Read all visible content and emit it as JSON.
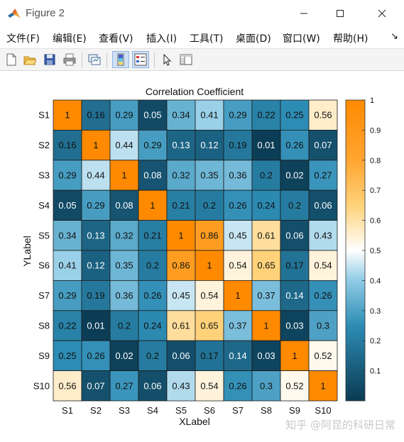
{
  "window": {
    "title": "Figure 2"
  },
  "menu": [
    {
      "label": "文件(F)"
    },
    {
      "label": "编辑(E)"
    },
    {
      "label": "查看(V)"
    },
    {
      "label": "插入(I)"
    },
    {
      "label": "工具(T)"
    },
    {
      "label": "桌面(D)"
    },
    {
      "label": "窗口(W)"
    },
    {
      "label": "帮助(H)"
    }
  ],
  "menu_overflow": "↘",
  "toolbar": {
    "icons": [
      "new-figure-icon",
      "open-file-icon",
      "save-icon",
      "print-icon",
      "link-plot-icon",
      "colorbar-toggle-icon",
      "legend-toggle-icon",
      "pointer-icon",
      "property-inspector-icon"
    ],
    "active": [
      "colorbar-toggle-icon",
      "legend-toggle-icon"
    ]
  },
  "watermark": "知乎 @阿昆的科研日常",
  "colors": {
    "low": "#0b3a52",
    "mid_low": "#4aa3c8",
    "mid": "#ffffff",
    "mid_high": "#ffc65a",
    "high": "#ff8a00"
  },
  "chart_data": {
    "type": "heatmap",
    "title": "Correlation Coefficient",
    "xlabel": "XLabel",
    "ylabel": "YLabel",
    "x_categories": [
      "S1",
      "S2",
      "S3",
      "S4",
      "S5",
      "S6",
      "S7",
      "S8",
      "S9",
      "S10"
    ],
    "y_categories": [
      "S1",
      "S2",
      "S3",
      "S4",
      "S5",
      "S6",
      "S7",
      "S8",
      "S9",
      "S10"
    ],
    "values": [
      [
        1,
        0.16,
        0.29,
        0.05,
        0.34,
        0.41,
        0.29,
        0.22,
        0.25,
        0.56
      ],
      [
        0.16,
        1,
        0.44,
        0.29,
        0.13,
        0.12,
        0.19,
        0.01,
        0.26,
        0.07
      ],
      [
        0.29,
        0.44,
        1,
        0.08,
        0.32,
        0.35,
        0.36,
        0.2,
        0.02,
        0.27
      ],
      [
        0.05,
        0.29,
        0.08,
        1,
        0.21,
        0.2,
        0.26,
        0.24,
        0.2,
        0.06
      ],
      [
        0.34,
        0.13,
        0.32,
        0.21,
        1,
        0.86,
        0.45,
        0.61,
        0.06,
        0.43
      ],
      [
        0.41,
        0.12,
        0.35,
        0.2,
        0.86,
        1,
        0.54,
        0.65,
        0.17,
        0.54
      ],
      [
        0.29,
        0.19,
        0.36,
        0.26,
        0.45,
        0.54,
        1,
        0.37,
        0.14,
        0.26
      ],
      [
        0.22,
        0.01,
        0.2,
        0.24,
        0.61,
        0.65,
        0.37,
        1,
        0.03,
        0.3
      ],
      [
        0.25,
        0.26,
        0.02,
        0.2,
        0.06,
        0.17,
        0.14,
        0.03,
        1,
        0.52
      ],
      [
        0.56,
        0.07,
        0.27,
        0.06,
        0.43,
        0.54,
        0.26,
        0.3,
        0.52,
        1
      ]
    ],
    "colorbar": {
      "range": [
        0,
        1
      ],
      "ticks": [
        0.1,
        0.2,
        0.3,
        0.4,
        0.5,
        0.6,
        0.7,
        0.8,
        0.9,
        1
      ],
      "tick_labels": [
        "0.1",
        "0.2",
        "0.3",
        "0.4",
        "0.5",
        "0.6",
        "0.7",
        "0.8",
        "0.9",
        "1"
      ]
    }
  }
}
